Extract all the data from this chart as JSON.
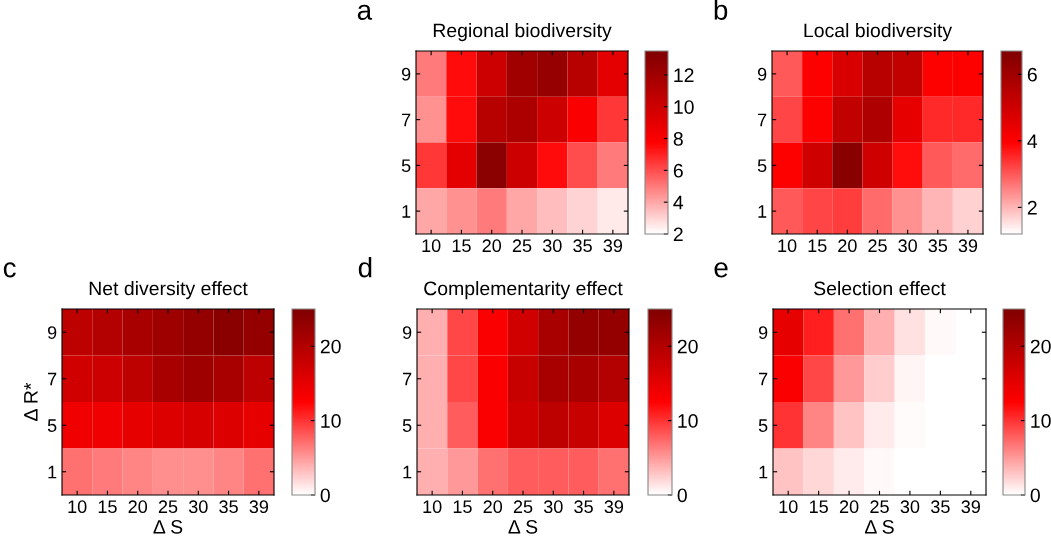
{
  "chart_data": [
    {
      "type": "heatmap",
      "title": "Regional biodiversity",
      "annotations": [
        "a"
      ],
      "categories": [
        "10",
        "15",
        "20",
        "25",
        "30",
        "35",
        "39"
      ],
      "y_categories": [
        "9",
        "7",
        "5",
        "1"
      ],
      "cells": [
        [
          5,
          7.5,
          10,
          12,
          12.5,
          11,
          9
        ],
        [
          4.5,
          7.5,
          11,
          11.5,
          10,
          8,
          6.5
        ],
        [
          6.5,
          9,
          13,
          10,
          7.5,
          6,
          5
        ],
        [
          4,
          4.5,
          5,
          4,
          3.5,
          3,
          2.5
        ]
      ],
      "clim": [
        2,
        13.5
      ],
      "cticks": [
        2,
        4,
        6,
        8,
        10,
        12
      ]
    },
    {
      "type": "heatmap",
      "title": "Local biodiversity",
      "annotations": [
        "b"
      ],
      "categories": [
        "10",
        "15",
        "20",
        "25",
        "30",
        "35",
        "39"
      ],
      "y_categories": [
        "9",
        "7",
        "5",
        "1"
      ],
      "cells": [
        [
          3,
          4,
          4.8,
          5.5,
          5.3,
          4,
          4
        ],
        [
          3.2,
          4,
          5.3,
          5.7,
          4.5,
          3.5,
          3.5
        ],
        [
          4,
          5,
          6.5,
          5,
          3.8,
          3,
          2.8
        ],
        [
          3,
          3.2,
          3.3,
          2.8,
          2.4,
          2,
          1.7
        ]
      ],
      "clim": [
        1.2,
        6.7
      ],
      "cticks": [
        2,
        4,
        6
      ]
    },
    {
      "type": "heatmap",
      "title": "Net diversity effect",
      "xlabel": "Δ S",
      "ylabel": "Δ R*",
      "annotations": [
        "c"
      ],
      "categories": [
        "10",
        "15",
        "20",
        "25",
        "30",
        "35",
        "39"
      ],
      "y_categories": [
        "9",
        "7",
        "5",
        "1"
      ],
      "cells": [
        [
          19,
          20,
          21,
          22,
          23,
          24,
          23
        ],
        [
          17,
          17.5,
          19,
          21,
          22,
          21,
          19
        ],
        [
          14,
          14,
          15,
          16,
          16.5,
          16,
          15
        ],
        [
          7,
          6.5,
          6,
          5.5,
          5.5,
          6,
          7
        ]
      ],
      "clim": [
        0,
        25
      ],
      "cticks": [
        0,
        10,
        20
      ]
    },
    {
      "type": "heatmap",
      "title": "Complementarity effect",
      "xlabel": "Δ S",
      "annotations": [
        "d"
      ],
      "categories": [
        "10",
        "15",
        "20",
        "25",
        "30",
        "35",
        "39"
      ],
      "y_categories": [
        "9",
        "7",
        "5",
        "1"
      ],
      "cells": [
        [
          4,
          9,
          13,
          17,
          21,
          23,
          23
        ],
        [
          4,
          9,
          13,
          18,
          21,
          21,
          20
        ],
        [
          4,
          8,
          13,
          17,
          19,
          18,
          16
        ],
        [
          4,
          5,
          7,
          8,
          8,
          8,
          7
        ]
      ],
      "clim": [
        0,
        25
      ],
      "cticks": [
        0,
        10,
        20
      ]
    },
    {
      "type": "heatmap",
      "title": "Selection effect",
      "xlabel": "Δ S",
      "annotations": [
        "e"
      ],
      "categories": [
        "10",
        "15",
        "20",
        "25",
        "30",
        "35",
        "39"
      ],
      "y_categories": [
        "9",
        "7",
        "5",
        "1"
      ],
      "cells": [
        [
          15,
          11,
          7,
          4,
          1.5,
          0.3,
          0
        ],
        [
          13,
          9,
          5,
          2.5,
          0.5,
          0,
          0
        ],
        [
          10,
          6,
          3,
          1,
          0.2,
          0,
          0
        ],
        [
          3,
          2,
          1,
          0.3,
          0,
          0,
          0
        ]
      ],
      "clim": [
        0,
        25
      ],
      "cticks": [
        0,
        10,
        20
      ]
    }
  ]
}
